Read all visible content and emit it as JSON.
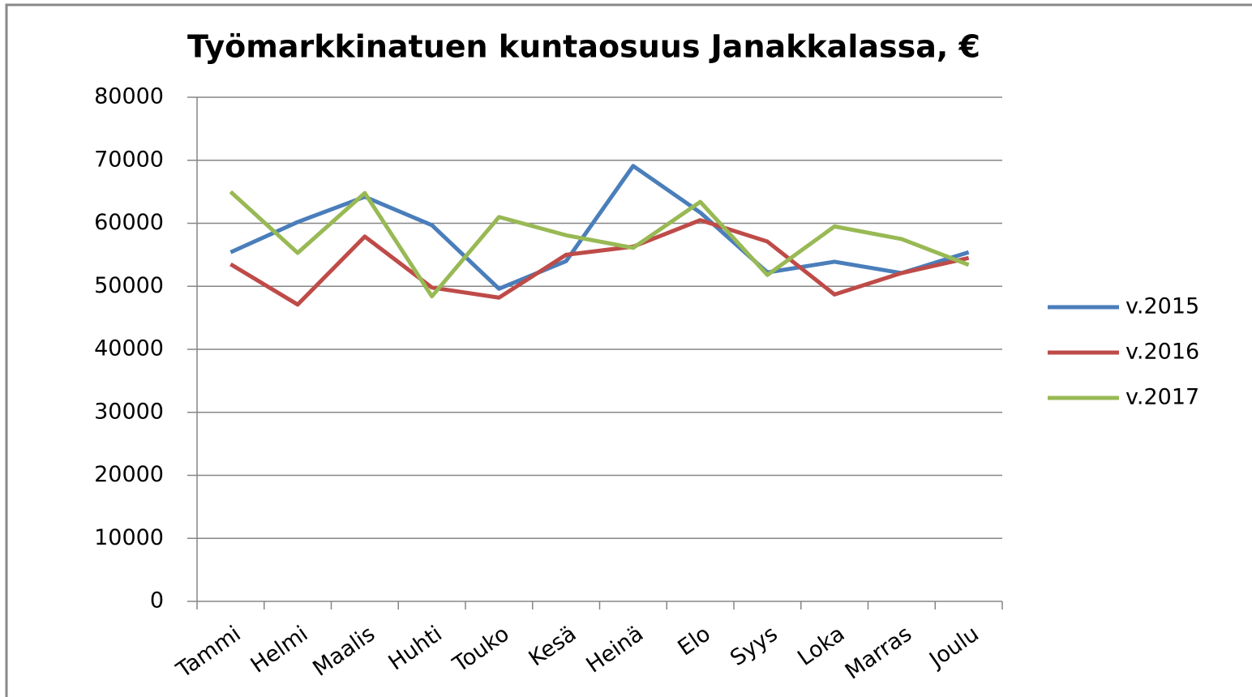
{
  "chart_data": {
    "type": "line",
    "title": "Työmarkkinatuen kuntaosuus Janakkalassa, €",
    "categories": [
      "Tammi",
      "Helmi",
      "Maalis",
      "Huhti",
      "Touko",
      "Kesä",
      "Heinä",
      "Elo",
      "Syys",
      "Loka",
      "Marras",
      "Joulu"
    ],
    "series": [
      {
        "name": "v.2015",
        "color": "#4a7ebb",
        "values": [
          55400,
          60200,
          64200,
          59700,
          49600,
          54000,
          69100,
          61700,
          52200,
          53900,
          52100,
          55400
        ]
      },
      {
        "name": "v.2016",
        "color": "#be4b48",
        "values": [
          53500,
          47100,
          57900,
          49800,
          48200,
          55000,
          56300,
          60500,
          57100,
          48700,
          52100,
          54500
        ]
      },
      {
        "name": "v.2017",
        "color": "#98b954",
        "values": [
          65000,
          55300,
          64800,
          48400,
          61000,
          58100,
          56100,
          63400,
          51800,
          59500,
          57500,
          53400
        ]
      }
    ],
    "ylim": [
      0,
      80000
    ],
    "yticks": [
      0,
      10000,
      20000,
      30000,
      40000,
      50000,
      60000,
      70000,
      80000
    ],
    "grid": true,
    "legend": "right"
  }
}
